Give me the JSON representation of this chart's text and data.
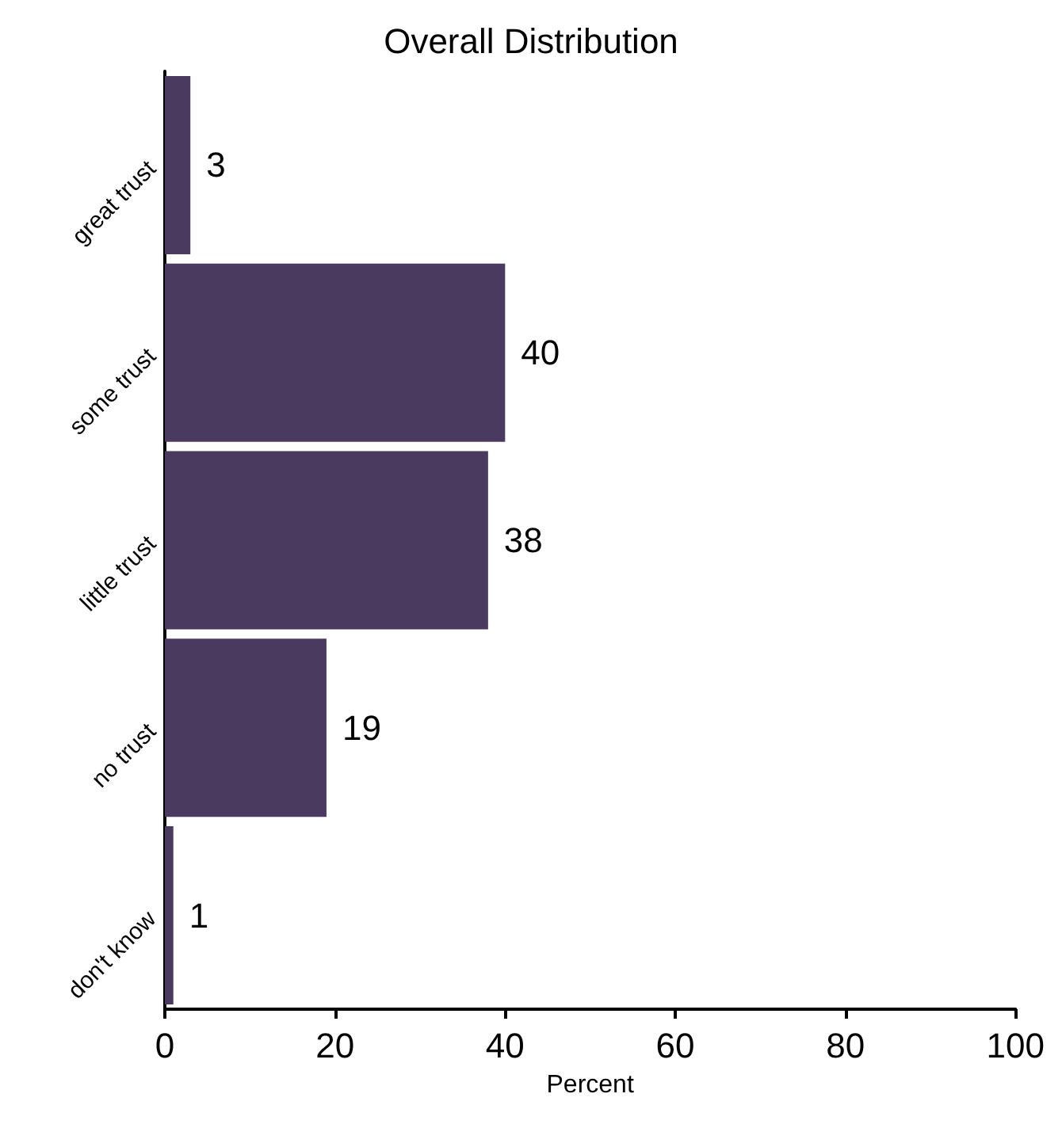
{
  "chart_data": {
    "type": "bar",
    "orientation": "horizontal",
    "title": "Overall Distribution",
    "xlabel": "Percent",
    "categories": [
      "great trust",
      "some trust",
      "little trust",
      "no trust",
      "don't know"
    ],
    "values": [
      3,
      40,
      38,
      19,
      1
    ],
    "color": "#4b3a5f",
    "data_labels": true,
    "xlim": [
      0,
      100
    ],
    "xticks": [
      0,
      20,
      40,
      60,
      80,
      100
    ],
    "grid": false
  }
}
